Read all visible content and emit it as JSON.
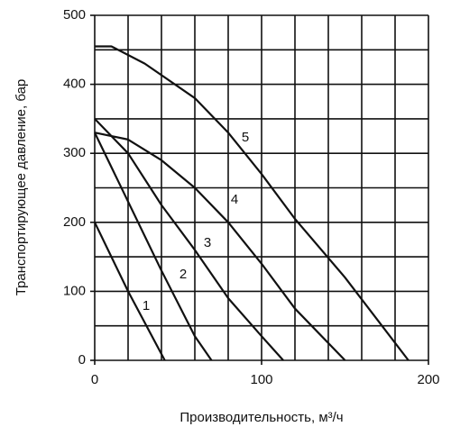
{
  "chart_data": {
    "type": "line",
    "x_label": "Производительность, м³/ч",
    "y_label": "Транспортирующее давление, бар",
    "xlim": [
      0,
      200
    ],
    "ylim": [
      0,
      500
    ],
    "xticks": [
      0,
      100,
      200
    ],
    "yticks": [
      0,
      100,
      200,
      300,
      400,
      500
    ],
    "xgrid": [
      0,
      20,
      40,
      60,
      80,
      100,
      120,
      140,
      160,
      180,
      200
    ],
    "ygrid": [
      0,
      50,
      100,
      150,
      200,
      250,
      300,
      350,
      400,
      450,
      500
    ],
    "series": [
      {
        "name": "1",
        "color": "#111111",
        "x": [
          0,
          20,
          42
        ],
        "values": [
          200,
          100,
          0
        ]
      },
      {
        "name": "2",
        "color": "#111111",
        "x": [
          0,
          20,
          40,
          60,
          70
        ],
        "values": [
          330,
          230,
          130,
          35,
          0
        ]
      },
      {
        "name": "3",
        "color": "#111111",
        "x": [
          0,
          20,
          40,
          60,
          80,
          100,
          113
        ],
        "values": [
          350,
          300,
          225,
          160,
          90,
          35,
          0
        ]
      },
      {
        "name": "4",
        "color": "#111111",
        "x": [
          0,
          20,
          40,
          60,
          80,
          100,
          120,
          150
        ],
        "values": [
          330,
          320,
          290,
          250,
          200,
          140,
          75,
          0
        ]
      },
      {
        "name": "5",
        "color": "#111111",
        "x": [
          0,
          10,
          30,
          60,
          80,
          100,
          120,
          150,
          188
        ],
        "values": [
          455,
          455,
          430,
          380,
          330,
          270,
          205,
          120,
          0
        ]
      }
    ]
  }
}
